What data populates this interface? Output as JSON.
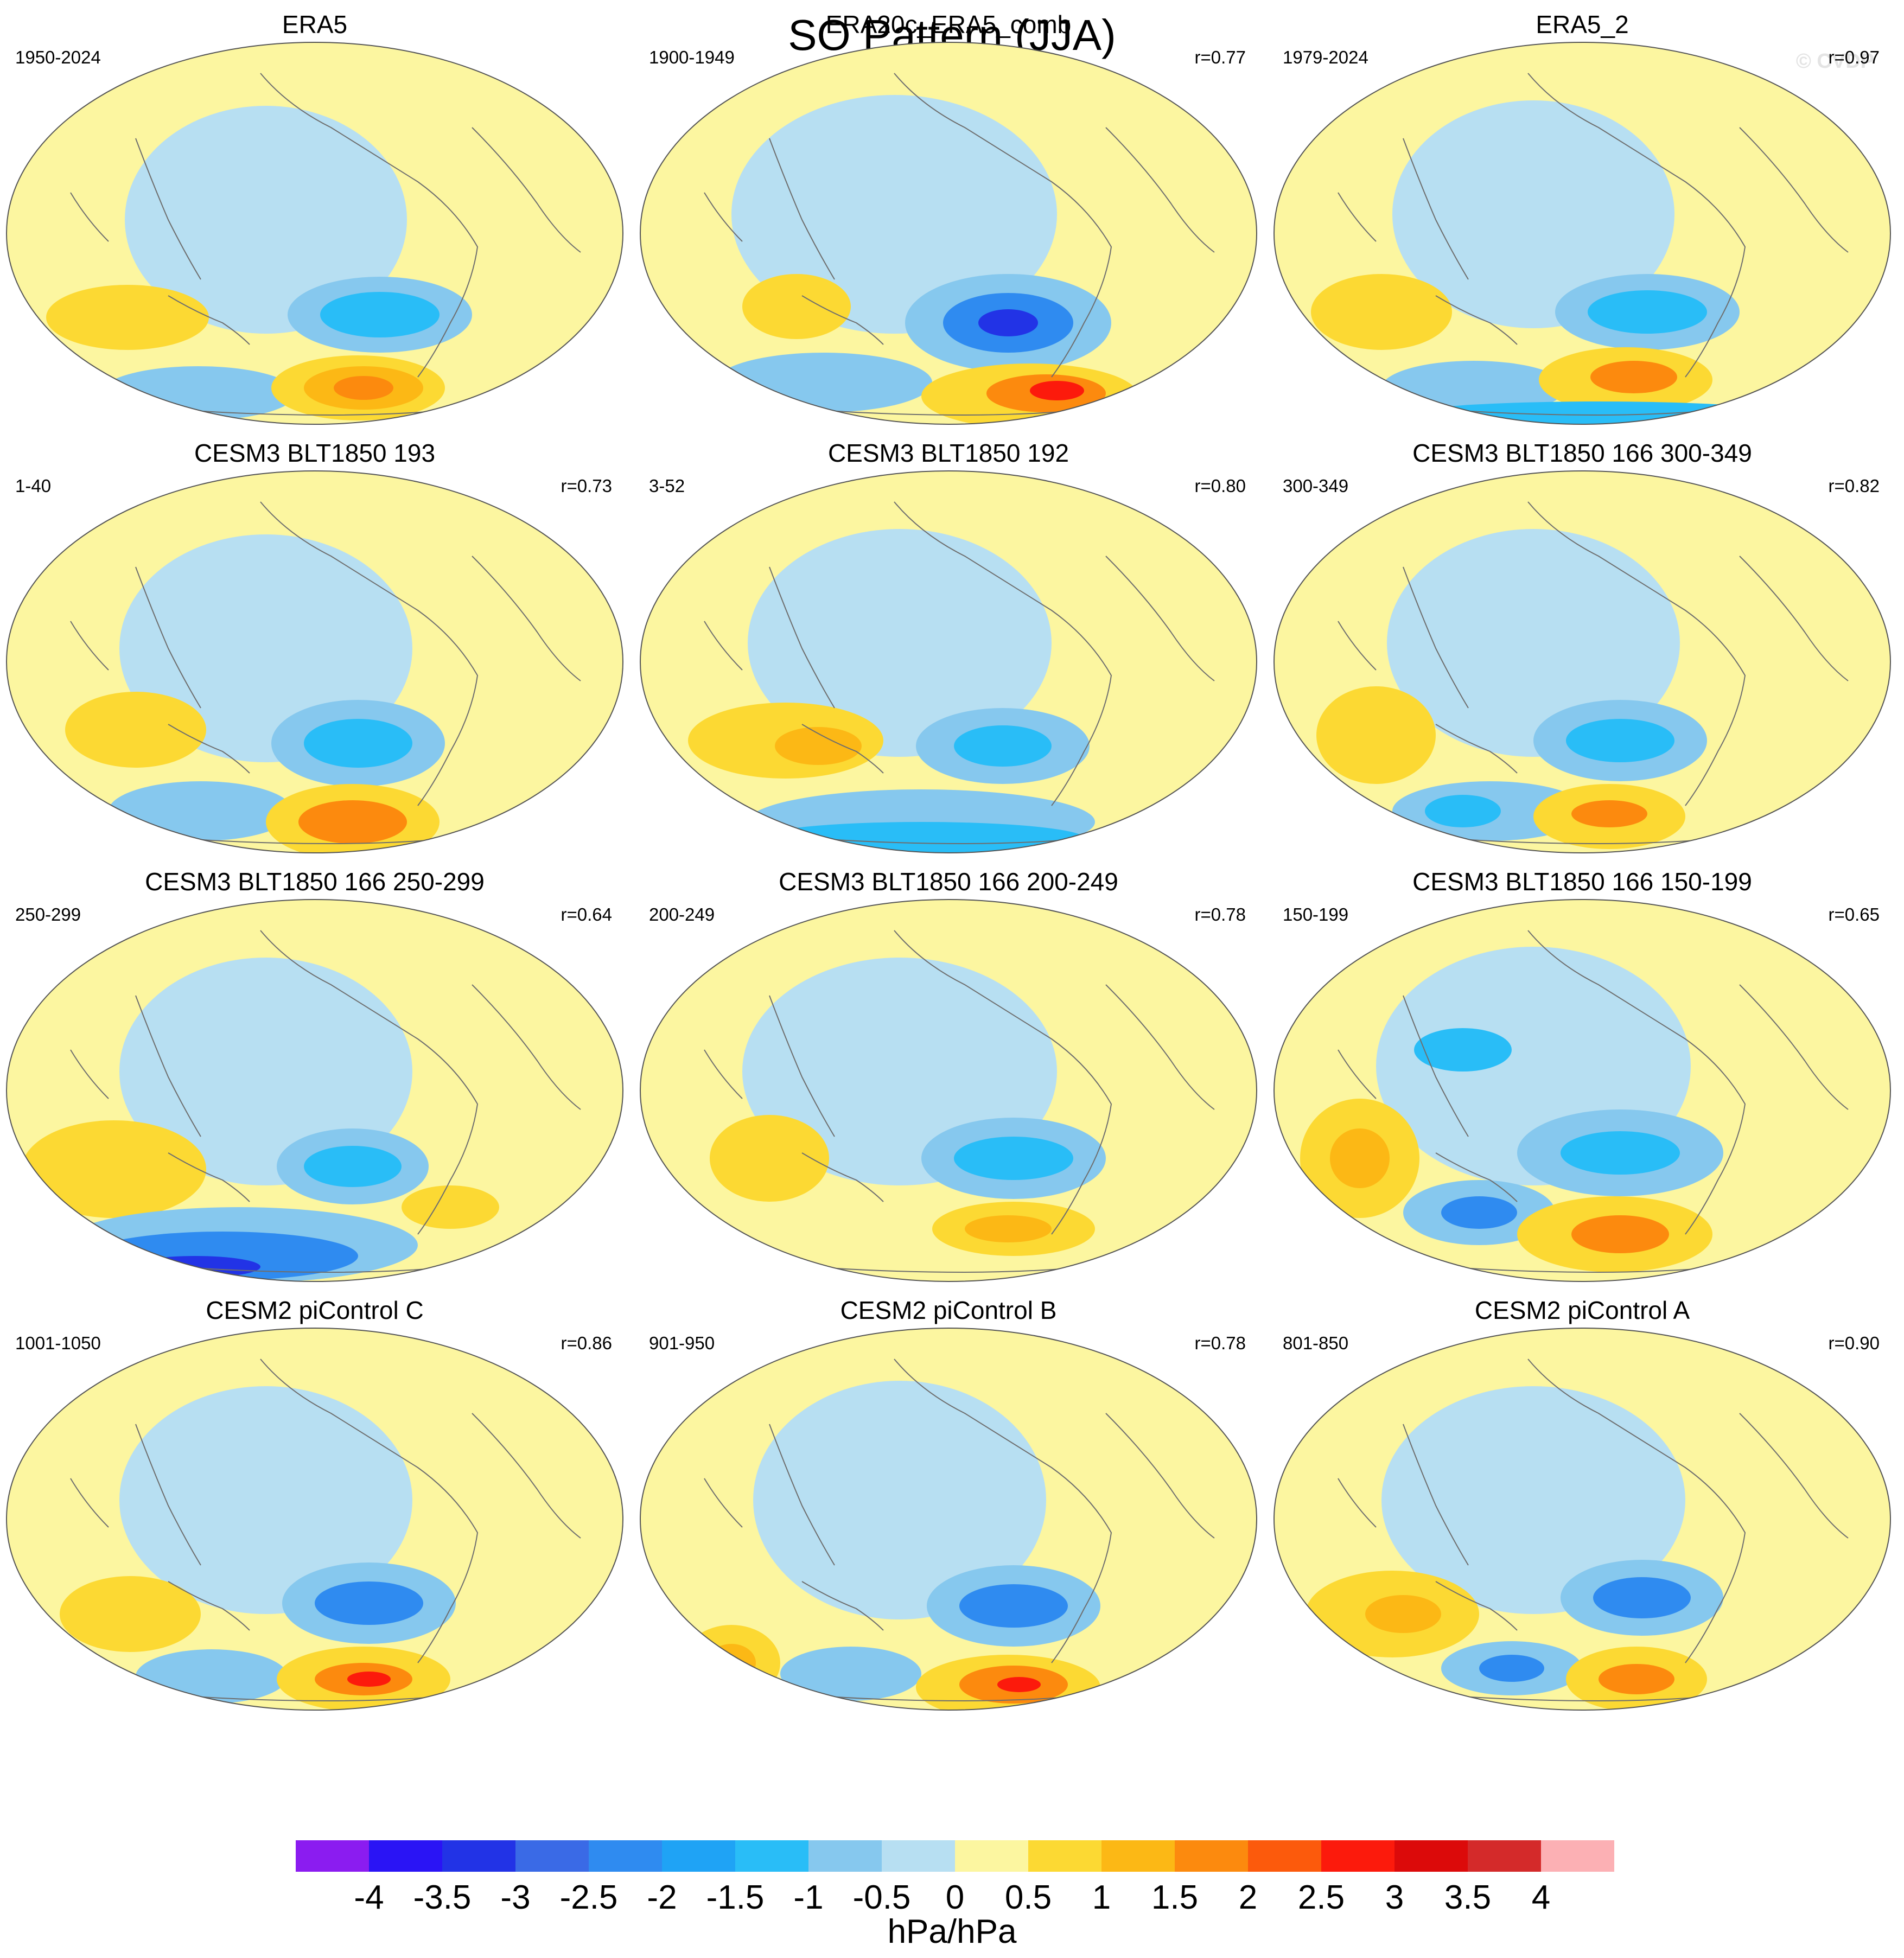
{
  "title": "SO Pattern (JJA)",
  "watermark": "© CVDP",
  "panels": [
    {
      "title": "ERA5",
      "period": "1950-2024",
      "corr": ""
    },
    {
      "title": "ERA20c_ERA5_comb",
      "period": "1900-1949",
      "corr": "r=0.77"
    },
    {
      "title": "ERA5_2",
      "period": "1979-2024",
      "corr": "r=0.97"
    },
    {
      "title": "CESM3 BLT1850 193",
      "period": "1-40",
      "corr": "r=0.73"
    },
    {
      "title": "CESM3 BLT1850 192",
      "period": "3-52",
      "corr": "r=0.80"
    },
    {
      "title": "CESM3 BLT1850 166 300-349",
      "period": "300-349",
      "corr": "r=0.82"
    },
    {
      "title": "CESM3 BLT1850 166 250-299",
      "period": "250-299",
      "corr": "r=0.64"
    },
    {
      "title": "CESM3 BLT1850 166 200-249",
      "period": "200-249",
      "corr": "r=0.78"
    },
    {
      "title": "CESM3 BLT1850 166 150-199",
      "period": "150-199",
      "corr": "r=0.65"
    },
    {
      "title": "CESM2 piControl C",
      "period": "1001-1050",
      "corr": "r=0.86"
    },
    {
      "title": "CESM2 piControl B",
      "period": "901-950",
      "corr": "r=0.78"
    },
    {
      "title": "CESM2 piControl A",
      "period": "801-850",
      "corr": "r=0.90"
    }
  ],
  "chart_data": {
    "type": "heatmap",
    "projection": "Robinson (Pacific-centered)",
    "title": "SO Pattern (JJA)",
    "units": "hPa/hPa",
    "colorbar": {
      "levels": [
        "-4",
        "-3.5",
        "-3",
        "-2.5",
        "-2",
        "-1.5",
        "-1",
        "-0.5",
        "0",
        "0.5",
        "1",
        "1.5",
        "2",
        "2.5",
        "3",
        "3.5",
        "4"
      ],
      "colors": [
        "#8b1cf0",
        "#2a14f5",
        "#2233e6",
        "#3a6ae6",
        "#2f8bf0",
        "#1fa3f5",
        "#29bdf7",
        "#86c8ee",
        "#b7dff2",
        "#fcf6a0",
        "#fcd933",
        "#fcb815",
        "#fc8a0e",
        "#fc5a0c",
        "#fc1a0c",
        "#dc0a0a",
        "#d42a2a",
        "#fcb0b4"
      ]
    }
  }
}
